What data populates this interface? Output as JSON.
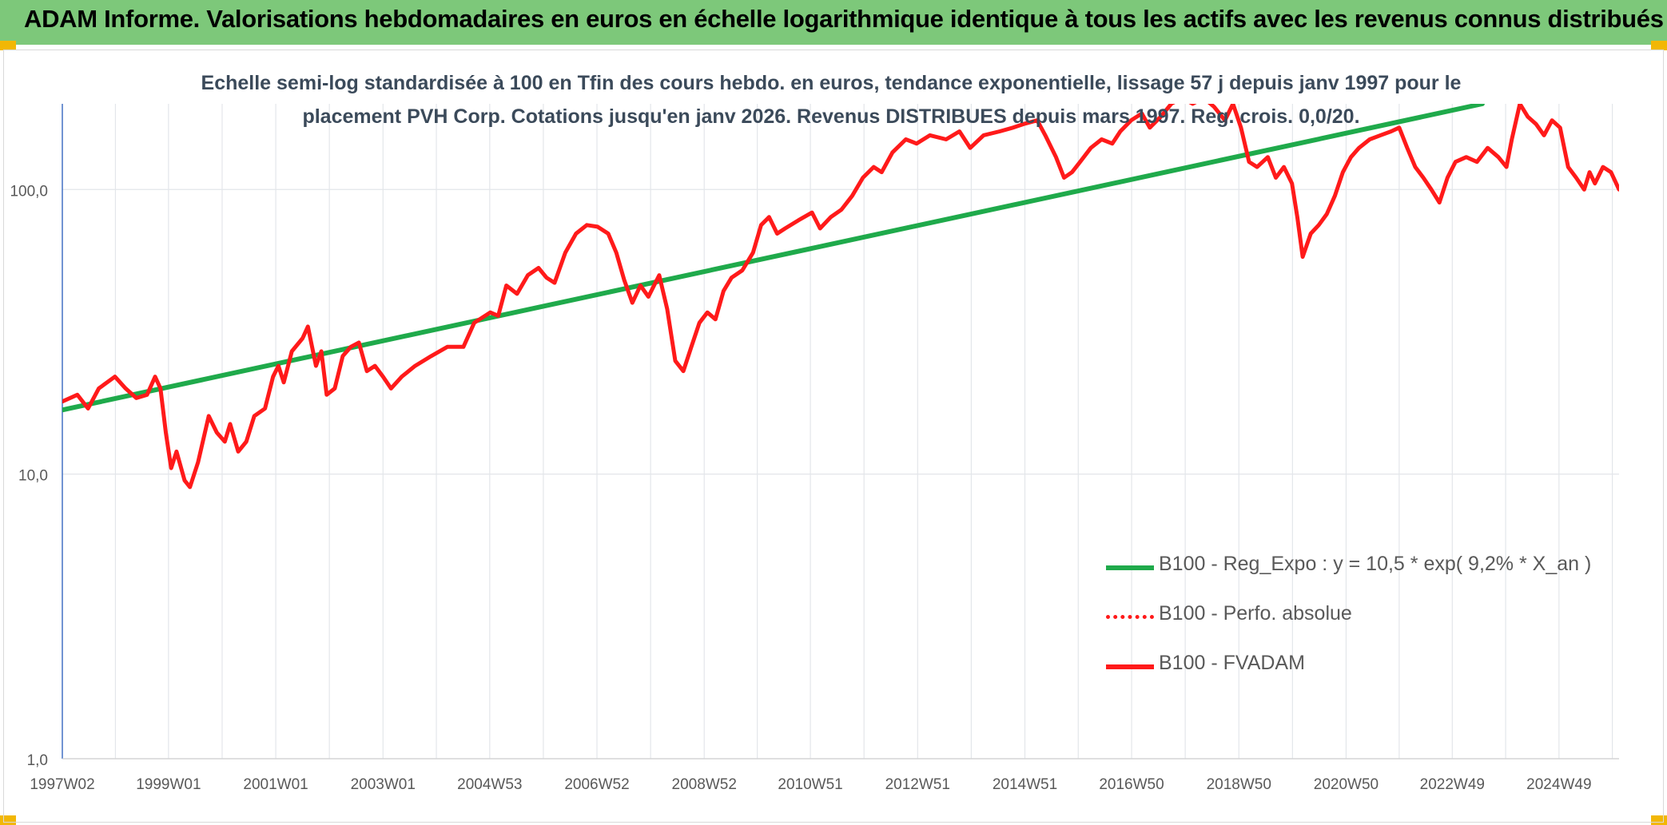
{
  "header": {
    "title": "ADAM Informe. Valorisations hebdomadaires en euros en échelle logarithmique identique à tous les actifs avec les revenus connus distribués"
  },
  "chart_data": {
    "type": "line",
    "title_line1": "Echelle semi-log standardisée à 100 en Tfin des cours hebdo. en euros, tendance exponentielle, lissage 57 j depuis janv 1997 pour le",
    "title_line2": "placement PVH Corp. Cotations jusqu'en janv 2026. Revenus DISTRIBUES depuis mars 1997. Reg. crois.  0,0/20.",
    "y_scale": "log",
    "ylim": [
      1,
      200
    ],
    "y_ticks": [
      1,
      10,
      100
    ],
    "y_tick_labels": [
      "1,0",
      "10,0",
      "100,0"
    ],
    "x_range": [
      1997.02,
      2026.05
    ],
    "x_ticks": [
      1997.02,
      1999.0,
      2001.0,
      2003.0,
      2004.99,
      2006.99,
      2008.99,
      2010.97,
      2012.97,
      2014.97,
      2016.96,
      2018.96,
      2020.96,
      2022.94,
      2024.93
    ],
    "x_tick_labels": [
      "1997W02",
      "1999W01",
      "2001W01",
      "2003W01",
      "2004W53",
      "2006W52",
      "2008W52",
      "2010W51",
      "2012W51",
      "2014W51",
      "2016W50",
      "2018W50",
      "2020W50",
      "2022W49",
      "2024W49"
    ],
    "grid": true,
    "legend_position": "lower-right",
    "series": [
      {
        "name": "B100 - Reg_Expo : y = 10,5 * exp( 9,2% *  X_an )",
        "color": "#1faa4b",
        "style": "solid",
        "points": [
          [
            1997.02,
            16.8
          ],
          [
            2023.5,
            200
          ]
        ]
      },
      {
        "name": "B100 - Perfo. absolue",
        "color": "#ff1a1a",
        "style": "dotted",
        "points": []
      },
      {
        "name": "B100 - FVADAM",
        "color": "#ff1a1a",
        "style": "solid",
        "points": [
          [
            1997.02,
            18
          ],
          [
            1997.3,
            19
          ],
          [
            1997.5,
            17
          ],
          [
            1997.7,
            20
          ],
          [
            1998.0,
            22
          ],
          [
            1998.2,
            20
          ],
          [
            1998.4,
            18.5
          ],
          [
            1998.6,
            19
          ],
          [
            1998.75,
            22
          ],
          [
            1998.85,
            20
          ],
          [
            1998.95,
            14
          ],
          [
            1999.05,
            10.5
          ],
          [
            1999.15,
            12
          ],
          [
            1999.3,
            9.5
          ],
          [
            1999.4,
            9
          ],
          [
            1999.55,
            11
          ],
          [
            1999.75,
            16
          ],
          [
            1999.9,
            14
          ],
          [
            2000.05,
            13
          ],
          [
            2000.15,
            15
          ],
          [
            2000.3,
            12
          ],
          [
            2000.45,
            13
          ],
          [
            2000.6,
            16
          ],
          [
            2000.8,
            17
          ],
          [
            2000.95,
            22
          ],
          [
            2001.05,
            24
          ],
          [
            2001.15,
            21
          ],
          [
            2001.3,
            27
          ],
          [
            2001.5,
            30
          ],
          [
            2001.6,
            33
          ],
          [
            2001.75,
            24
          ],
          [
            2001.85,
            27
          ],
          [
            2001.95,
            19
          ],
          [
            2002.1,
            20
          ],
          [
            2002.25,
            26
          ],
          [
            2002.4,
            28
          ],
          [
            2002.55,
            29
          ],
          [
            2002.7,
            23
          ],
          [
            2002.85,
            24
          ],
          [
            2003.0,
            22
          ],
          [
            2003.15,
            20
          ],
          [
            2003.35,
            22
          ],
          [
            2003.6,
            24
          ],
          [
            2003.9,
            26
          ],
          [
            2004.2,
            28
          ],
          [
            2004.5,
            28
          ],
          [
            2004.7,
            34
          ],
          [
            2005.0,
            37
          ],
          [
            2005.15,
            36
          ],
          [
            2005.3,
            46
          ],
          [
            2005.5,
            43
          ],
          [
            2005.7,
            50
          ],
          [
            2005.9,
            53
          ],
          [
            2006.05,
            49
          ],
          [
            2006.2,
            47
          ],
          [
            2006.4,
            60
          ],
          [
            2006.6,
            70
          ],
          [
            2006.8,
            75
          ],
          [
            2007.0,
            74
          ],
          [
            2007.2,
            70
          ],
          [
            2007.35,
            60
          ],
          [
            2007.5,
            48
          ],
          [
            2007.65,
            40
          ],
          [
            2007.8,
            46
          ],
          [
            2007.95,
            42
          ],
          [
            2008.15,
            50
          ],
          [
            2008.3,
            38
          ],
          [
            2008.45,
            25
          ],
          [
            2008.6,
            23
          ],
          [
            2008.75,
            28
          ],
          [
            2008.9,
            34
          ],
          [
            2009.05,
            37
          ],
          [
            2009.2,
            35
          ],
          [
            2009.35,
            44
          ],
          [
            2009.5,
            49
          ],
          [
            2009.7,
            52
          ],
          [
            2009.9,
            60
          ],
          [
            2010.05,
            75
          ],
          [
            2010.2,
            80
          ],
          [
            2010.35,
            70
          ],
          [
            2010.5,
            73
          ],
          [
            2010.75,
            78
          ],
          [
            2011.0,
            83
          ],
          [
            2011.15,
            73
          ],
          [
            2011.35,
            80
          ],
          [
            2011.55,
            85
          ],
          [
            2011.75,
            95
          ],
          [
            2011.95,
            110
          ],
          [
            2012.15,
            120
          ],
          [
            2012.3,
            115
          ],
          [
            2012.5,
            135
          ],
          [
            2012.75,
            150
          ],
          [
            2012.95,
            145
          ],
          [
            2013.2,
            155
          ],
          [
            2013.5,
            150
          ],
          [
            2013.75,
            160
          ],
          [
            2013.95,
            140
          ],
          [
            2014.2,
            155
          ],
          [
            2014.5,
            160
          ],
          [
            2014.75,
            165
          ],
          [
            2014.95,
            170
          ],
          [
            2015.2,
            175
          ],
          [
            2015.35,
            155
          ],
          [
            2015.55,
            130
          ],
          [
            2015.7,
            110
          ],
          [
            2015.85,
            115
          ],
          [
            2016.0,
            125
          ],
          [
            2016.2,
            140
          ],
          [
            2016.4,
            150
          ],
          [
            2016.6,
            145
          ],
          [
            2016.75,
            160
          ],
          [
            2016.95,
            175
          ],
          [
            2017.15,
            185
          ],
          [
            2017.3,
            165
          ],
          [
            2017.5,
            180
          ],
          [
            2017.7,
            200
          ],
          [
            2017.9,
            210
          ],
          [
            2018.1,
            200
          ],
          [
            2018.3,
            210
          ],
          [
            2018.5,
            195
          ],
          [
            2018.7,
            175
          ],
          [
            2018.85,
            200
          ],
          [
            2019.0,
            165
          ],
          [
            2019.15,
            125
          ],
          [
            2019.3,
            120
          ],
          [
            2019.5,
            130
          ],
          [
            2019.65,
            110
          ],
          [
            2019.8,
            120
          ],
          [
            2019.95,
            105
          ],
          [
            2020.05,
            80
          ],
          [
            2020.15,
            58
          ],
          [
            2020.3,
            70
          ],
          [
            2020.45,
            75
          ],
          [
            2020.6,
            82
          ],
          [
            2020.75,
            95
          ],
          [
            2020.9,
            115
          ],
          [
            2021.05,
            130
          ],
          [
            2021.2,
            140
          ],
          [
            2021.4,
            150
          ],
          [
            2021.6,
            155
          ],
          [
            2021.8,
            160
          ],
          [
            2021.95,
            165
          ],
          [
            2022.1,
            140
          ],
          [
            2022.25,
            120
          ],
          [
            2022.4,
            110
          ],
          [
            2022.55,
            100
          ],
          [
            2022.7,
            90
          ],
          [
            2022.85,
            110
          ],
          [
            2023.0,
            125
          ],
          [
            2023.2,
            130
          ],
          [
            2023.4,
            125
          ],
          [
            2023.6,
            140
          ],
          [
            2023.8,
            130
          ],
          [
            2023.95,
            120
          ],
          [
            2024.05,
            150
          ],
          [
            2024.2,
            200
          ],
          [
            2024.35,
            180
          ],
          [
            2024.5,
            170
          ],
          [
            2024.65,
            155
          ],
          [
            2024.8,
            175
          ],
          [
            2024.95,
            165
          ],
          [
            2025.1,
            120
          ],
          [
            2025.25,
            110
          ],
          [
            2025.4,
            100
          ],
          [
            2025.5,
            115
          ],
          [
            2025.6,
            105
          ],
          [
            2025.75,
            120
          ],
          [
            2025.9,
            115
          ],
          [
            2026.05,
            100
          ]
        ]
      }
    ]
  }
}
